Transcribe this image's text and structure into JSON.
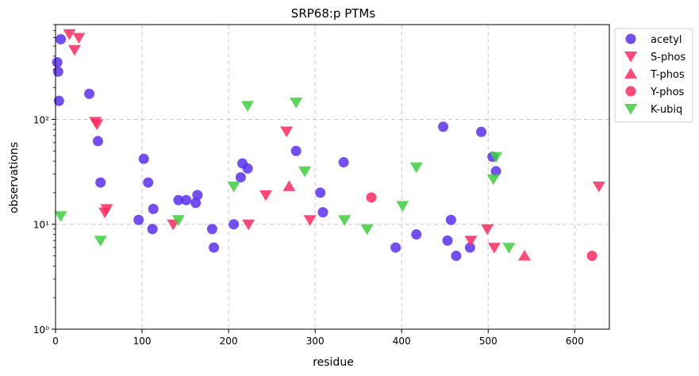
{
  "chart_data": {
    "type": "scatter",
    "title": "SRP68:p PTMs",
    "xlabel": "residue",
    "ylabel": "observations",
    "xlim": [
      0,
      640
    ],
    "ylim": [
      1,
      800
    ],
    "yscale": "log",
    "grid": true,
    "legend_position": "outside-top-right",
    "x_ticks": [
      0,
      100,
      200,
      300,
      400,
      500,
      600
    ],
    "y_ticks": [
      {
        "value": 1,
        "label": "10⁰"
      },
      {
        "value": 10,
        "label": "10¹"
      },
      {
        "value": 100,
        "label": "10²"
      }
    ],
    "series": [
      {
        "name": "acetyl",
        "marker": "circle",
        "color": "#5b2ff0",
        "points": [
          [
            2,
            350
          ],
          [
            3,
            285
          ],
          [
            4,
            150
          ],
          [
            6,
            580
          ],
          [
            39,
            175
          ],
          [
            49,
            62
          ],
          [
            52,
            25
          ],
          [
            96,
            11
          ],
          [
            102,
            42
          ],
          [
            107,
            25
          ],
          [
            112,
            9
          ],
          [
            113,
            14
          ],
          [
            142,
            17
          ],
          [
            151,
            17
          ],
          [
            162,
            16
          ],
          [
            164,
            19
          ],
          [
            181,
            9
          ],
          [
            183,
            6
          ],
          [
            206,
            10
          ],
          [
            214,
            28
          ],
          [
            216,
            38
          ],
          [
            222,
            34
          ],
          [
            278,
            50
          ],
          [
            306,
            20
          ],
          [
            309,
            13
          ],
          [
            333,
            39
          ],
          [
            393,
            6
          ],
          [
            417,
            8
          ],
          [
            448,
            85
          ],
          [
            453,
            7
          ],
          [
            457,
            11
          ],
          [
            463,
            5
          ],
          [
            479,
            6
          ],
          [
            492,
            76
          ],
          [
            505,
            44
          ],
          [
            509,
            32
          ]
        ]
      },
      {
        "name": "S-phos",
        "marker": "triangle-down",
        "color": "#ff2a5f",
        "points": [
          [
            16,
            650
          ],
          [
            22,
            460
          ],
          [
            27,
            600
          ],
          [
            46,
            95
          ],
          [
            48,
            90
          ],
          [
            57,
            13
          ],
          [
            59,
            14
          ],
          [
            136,
            10
          ],
          [
            223,
            10
          ],
          [
            243,
            19
          ],
          [
            267,
            77
          ],
          [
            294,
            11
          ],
          [
            480,
            7
          ],
          [
            499,
            9
          ],
          [
            507,
            6
          ],
          [
            628,
            23
          ]
        ]
      },
      {
        "name": "T-phos",
        "marker": "triangle-up",
        "color": "#ff2a5f",
        "points": [
          [
            270,
            23
          ],
          [
            542,
            5
          ]
        ]
      },
      {
        "name": "Y-phos",
        "marker": "circle",
        "color": "#ff2a5f",
        "points": [
          [
            365,
            18
          ],
          [
            620,
            5
          ]
        ]
      },
      {
        "name": "K-ubiq",
        "marker": "triangle-down",
        "color": "#3ecf3e",
        "points": [
          [
            6,
            12
          ],
          [
            52,
            7
          ],
          [
            142,
            11
          ],
          [
            206,
            23
          ],
          [
            222,
            135
          ],
          [
            278,
            145
          ],
          [
            288,
            32
          ],
          [
            334,
            11
          ],
          [
            360,
            9
          ],
          [
            401,
            15
          ],
          [
            417,
            35
          ],
          [
            506,
            27
          ],
          [
            509,
            44
          ],
          [
            524,
            6
          ]
        ]
      }
    ]
  }
}
